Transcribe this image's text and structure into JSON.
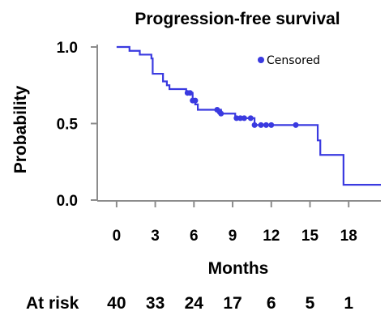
{
  "chart_data": {
    "type": "line",
    "title": "Progression-free survival",
    "xlabel": "Months",
    "ylabel": "Probability",
    "xlim": [
      -1.5,
      20.5
    ],
    "ylim": [
      0,
      1
    ],
    "x_ticks": [
      "0",
      "3",
      "6",
      "9",
      "12",
      "15",
      "18"
    ],
    "x_tick_values": [
      0,
      3,
      6,
      9,
      12,
      15,
      18
    ],
    "y_ticks": [
      "0.0",
      "0.5",
      "1.0"
    ],
    "y_tick_values": [
      0,
      0.5,
      1
    ],
    "grid": false,
    "legend": {
      "label": "Censored",
      "position": "top-right"
    },
    "line_color": "#3a3ae0",
    "series": [
      {
        "steps": [
          [
            0,
            1.0
          ],
          [
            1,
            0.975
          ],
          [
            1.8,
            0.95
          ],
          [
            2.7,
            0.925
          ],
          [
            2.8,
            0.825
          ],
          [
            3.6,
            0.775
          ],
          [
            3.9,
            0.75
          ],
          [
            4.1,
            0.725
          ],
          [
            5.4,
            0.7
          ],
          [
            5.9,
            0.65
          ],
          [
            6.1,
            0.625
          ],
          [
            6.3,
            0.59
          ],
          [
            8.1,
            0.565
          ],
          [
            9.2,
            0.535
          ],
          [
            10.7,
            0.49
          ],
          [
            15.6,
            0.39
          ],
          [
            15.8,
            0.295
          ],
          [
            17.6,
            0.1
          ],
          [
            20.5,
            0.1
          ]
        ],
        "censored": [
          [
            5.5,
            0.7
          ],
          [
            5.7,
            0.7
          ],
          [
            5.9,
            0.65
          ],
          [
            6.1,
            0.65
          ],
          [
            7.8,
            0.59
          ],
          [
            8.0,
            0.575
          ],
          [
            8.1,
            0.565
          ],
          [
            9.3,
            0.535
          ],
          [
            9.6,
            0.535
          ],
          [
            9.9,
            0.535
          ],
          [
            10.4,
            0.535
          ],
          [
            10.7,
            0.49
          ],
          [
            11.2,
            0.49
          ],
          [
            11.6,
            0.49
          ],
          [
            12.0,
            0.49
          ],
          [
            13.9,
            0.49
          ]
        ]
      }
    ]
  },
  "at_risk": {
    "label": "At risk",
    "values": [
      "40",
      "33",
      "24",
      "17",
      "6",
      "5",
      "1"
    ]
  }
}
